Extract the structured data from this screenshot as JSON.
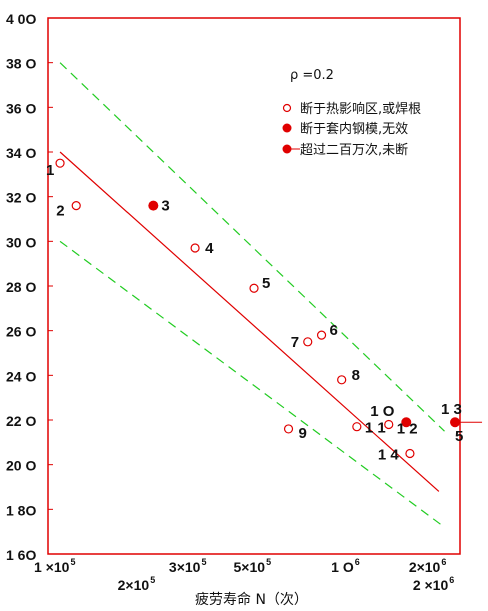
{
  "chart_data": {
    "type": "scatter",
    "x_scale": "log",
    "xlim": [
      100000,
      2600000
    ],
    "ylim": [
      160,
      400
    ],
    "y_ticks": [
      {
        "value": 400,
        "label": "4 0O"
      },
      {
        "value": 380,
        "label": "38 O"
      },
      {
        "value": 360,
        "label": "36 O"
      },
      {
        "value": 340,
        "label": "34 O"
      },
      {
        "value": 320,
        "label": "32 O"
      },
      {
        "value": 300,
        "label": "30 O"
      },
      {
        "value": 280,
        "label": "28 O"
      },
      {
        "value": 260,
        "label": "26 O"
      },
      {
        "value": 240,
        "label": "24 O"
      },
      {
        "value": 220,
        "label": "22 O"
      },
      {
        "value": 200,
        "label": "20 O"
      },
      {
        "value": 180,
        "label": "1 8O"
      },
      {
        "value": 160,
        "label": "1 6O"
      }
    ],
    "x_tick_labels_row1": [
      {
        "value": 100000,
        "label": "1 ×10",
        "sup": "5"
      },
      {
        "value": 300000,
        "label": "3×10",
        "sup": "5"
      },
      {
        "value": 500000,
        "label": "5×10",
        "sup": "5"
      },
      {
        "value": 1000000,
        "label": "1 O",
        "sup": "6"
      },
      {
        "value": 2000000,
        "label": "2×10",
        "sup": "6"
      }
    ],
    "x_tick_labels_row2": [
      {
        "value": 200000,
        "label": "2×10",
        "sup": "5"
      },
      {
        "value": 2000000,
        "label": "2 ×10",
        "sup": "6"
      }
    ],
    "xlabel": "疲劳寿命 N（次）",
    "stress_ratio": "ρ =0.2",
    "legend": [
      {
        "marker": "open-circle",
        "label": "断于热影响区,或焊根"
      },
      {
        "marker": "filled-circle",
        "label": "断于套内钢模,无效"
      },
      {
        "marker": "filled-arrow",
        "label": "超过二百万次,未断"
      }
    ],
    "points": [
      {
        "id": "1",
        "x": 110000,
        "y": 335,
        "marker": "open-circle"
      },
      {
        "id": "2",
        "x": 125000,
        "y": 316,
        "marker": "open-circle"
      },
      {
        "id": "3",
        "x": 230000,
        "y": 316,
        "marker": "filled-circle"
      },
      {
        "id": "4",
        "x": 320000,
        "y": 297,
        "marker": "open-circle"
      },
      {
        "id": "5",
        "x": 510000,
        "y": 279,
        "marker": "open-circle"
      },
      {
        "id": "6",
        "x": 870000,
        "y": 258,
        "marker": "open-circle"
      },
      {
        "id": "7",
        "x": 780000,
        "y": 255,
        "marker": "open-circle"
      },
      {
        "id": "8",
        "x": 1020000,
        "y": 238,
        "marker": "open-circle"
      },
      {
        "id": "9",
        "x": 670000,
        "y": 216,
        "marker": "open-circle"
      },
      {
        "id": "10",
        "x": 1700000,
        "y": 219,
        "marker": "filled-circle"
      },
      {
        "id": "11",
        "x": 1150000,
        "y": 217,
        "marker": "open-circle"
      },
      {
        "id": "12",
        "x": 1480000,
        "y": 218,
        "marker": "open-circle"
      },
      {
        "id": "13",
        "x": 2500000,
        "y": 219,
        "marker": "filled-arrow"
      },
      {
        "id": "14",
        "x": 1750000,
        "y": 205,
        "marker": "open-circle"
      },
      {
        "id": "15",
        "x": 2500000,
        "y": 219,
        "marker": "none"
      }
    ],
    "point_labels": [
      {
        "text": "1",
        "x": 110000,
        "y": 335
      },
      {
        "text": "2",
        "x": 125000,
        "y": 316
      },
      {
        "text": "3",
        "x": 230000,
        "y": 316
      },
      {
        "text": "4",
        "x": 320000,
        "y": 297
      },
      {
        "text": "5",
        "x": 510000,
        "y": 279
      },
      {
        "text": "6",
        "x": 870000,
        "y": 258
      },
      {
        "text": "7",
        "x": 780000,
        "y": 255
      },
      {
        "text": "8",
        "x": 1020000,
        "y": 238
      },
      {
        "text": "9",
        "x": 670000,
        "y": 216
      },
      {
        "text": "1 O",
        "x": 1700000,
        "y": 219
      },
      {
        "text": "1 1",
        "x": 1150000,
        "y": 217
      },
      {
        "text": "1 2",
        "x": 1480000,
        "y": 218
      },
      {
        "text": "1 3",
        "x": 2500000,
        "y": 219
      },
      {
        "text": "1 4",
        "x": 1750000,
        "y": 205
      },
      {
        "text": "5",
        "x": 2500000,
        "y": 219
      }
    ],
    "fit_line": {
      "from": [
        110000,
        340
      ],
      "to": [
        2200000,
        188
      ],
      "color": "#e00000"
    },
    "bound_upper": {
      "from": [
        110000,
        380
      ],
      "to": [
        2300000,
        215
      ],
      "color": "#22cc22"
    },
    "bound_lower": {
      "from": [
        110000,
        300
      ],
      "to": [
        2300000,
        172
      ],
      "color": "#22cc22"
    },
    "colors": {
      "axis": "#e00000",
      "marker": "#e00000",
      "fit": "#e00000",
      "bounds": "#22cc22"
    }
  }
}
